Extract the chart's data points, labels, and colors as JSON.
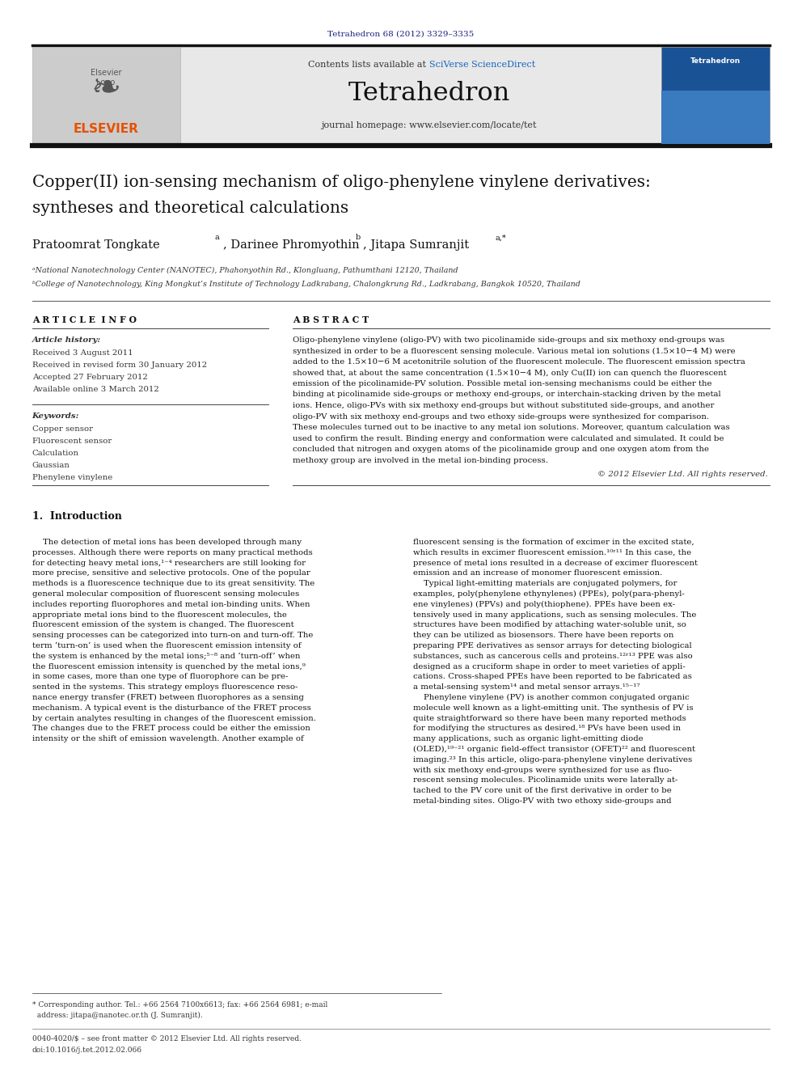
{
  "page_width": 9.92,
  "page_height": 13.23,
  "bg_color": "#ffffff",
  "journal_ref_text": "Tetrahedron 68 (2012) 3329–3335",
  "journal_ref_color": "#1a237e",
  "header_bg": "#e8e8e8",
  "contents_text": "Contents lists available at ",
  "sciverse_text": "SciVerse ScienceDirect",
  "sciverse_color": "#1565c0",
  "journal_name": "Tetrahedron",
  "homepage_text": "journal homepage: www.elsevier.com/locate/tet",
  "elsevier_color": "#e65100",
  "thick_bar_color": "#1a1a2e",
  "title_line1": "Copper(II) ion-sensing mechanism of oligo-phenylene vinylene derivatives:",
  "title_line2": "syntheses and theoretical calculations",
  "authors_text": "Pratoomrat Tongkate",
  "authors_sup_a": "a",
  "authors_part2": ", Darinee Phromyothin",
  "authors_sup_b": "b",
  "authors_part3": ", Jitapa Sumranjit",
  "authors_sup_ab": "a,*",
  "affil_a": "ᵃNational Nanotechnology Center (NANOTEC), Phahonyothin Rd., Klongluang, Pathumthani 12120, Thailand",
  "affil_b": "ᵇCollege of Nanotechnology, King Mongkut’s Institute of Technology Ladkrabang, Chalongkrung Rd., Ladkrabang, Bangkok 10520, Thailand",
  "article_info_title": "A R T I C L E  I N F O",
  "abstract_title": "A B S T R A C T",
  "article_history_label": "Article history:",
  "received_text": "Received 3 August 2011",
  "revised_text": "Received in revised form 30 January 2012",
  "accepted_text": "Accepted 27 February 2012",
  "online_text": "Available online 3 March 2012",
  "keywords_label": "Keywords:",
  "keyword1": "Copper sensor",
  "keyword2": "Fluorescent sensor",
  "keyword3": "Calculation",
  "keyword4": "Gaussian",
  "keyword5": "Phenylene vinylene",
  "abstract_body": "Oligo-phenylene vinylene (oligo-PV) with two picolinamide side-groups and six methoxy end-groups was\nsynthesized in order to be a fluorescent sensing molecule. Various metal ion solutions (1.5×10−4 M) were\nadded to the 1.5×10−6 M acetonitrile solution of the fluorescent molecule. The fluorescent emission spectra\nshowed that, at about the same concentration (1.5×10−4 M), only Cu(II) ion can quench the fluorescent\nemission of the picolinamide-PV solution. Possible metal ion-sensing mechanisms could be either the\nbinding at picolinamide side-groups or methoxy end-groups, or interchain-stacking driven by the metal\nions. Hence, oligo-PVs with six methoxy end-groups but without substituted side-groups, and another\noligo-PV with six methoxy end-groups and two ethoxy side-groups were synthesized for comparison.\nThese molecules turned out to be inactive to any metal ion solutions. Moreover, quantum calculation was\nused to confirm the result. Binding energy and conformation were calculated and simulated. It could be\nconcluded that nitrogen and oxygen atoms of the picolinamide group and one oxygen atom from the\nmethoxy group are involved in the metal ion-binding process.",
  "copyright_text": "© 2012 Elsevier Ltd. All rights reserved.",
  "intro_heading": "1.  Introduction",
  "intro_col1_lines": [
    "    The detection of metal ions has been developed through many",
    "processes. Although there were reports on many practical methods",
    "for detecting heavy metal ions,¹⁻⁴ researchers are still looking for",
    "more precise, sensitive and selective protocols. One of the popular",
    "methods is a fluorescence technique due to its great sensitivity. The",
    "general molecular composition of fluorescent sensing molecules",
    "includes reporting fluorophores and metal ion-binding units. When",
    "appropriate metal ions bind to the fluorescent molecules, the",
    "fluorescent emission of the system is changed. The fluorescent",
    "sensing processes can be categorized into turn-on and turn-off. The",
    "term ‘turn-on’ is used when the fluorescent emission intensity of",
    "the system is enhanced by the metal ions;⁵⁻⁸ and ‘turn-off’ when",
    "the fluorescent emission intensity is quenched by the metal ions,⁹",
    "in some cases, more than one type of fluorophore can be pre-",
    "sented in the systems. This strategy employs fluorescence reso-",
    "nance energy transfer (FRET) between fluorophores as a sensing",
    "mechanism. A typical event is the disturbance of the FRET process",
    "by certain analytes resulting in changes of the fluorescent emission.",
    "The changes due to the FRET process could be either the emission",
    "intensity or the shift of emission wavelength. Another example of"
  ],
  "intro_col2_lines": [
    "fluorescent sensing is the formation of excimer in the excited state,",
    "which results in excimer fluorescent emission.¹⁰ʳ¹¹ In this case, the",
    "presence of metal ions resulted in a decrease of excimer fluorescent",
    "emission and an increase of monomer fluorescent emission.",
    "    Typical light-emitting materials are conjugated polymers, for",
    "examples, poly(phenylene ethynylenes) (PPEs), poly(para-phenyl-",
    "ene vinylenes) (PPVs) and poly(thiophene). PPEs have been ex-",
    "tensively used in many applications, such as sensing molecules. The",
    "structures have been modified by attaching water-soluble unit, so",
    "they can be utilized as biosensors. There have been reports on",
    "preparing PPE derivatives as sensor arrays for detecting biological",
    "substances, such as cancerous cells and proteins.¹²ʳ¹³ PPE was also",
    "designed as a cruciform shape in order to meet varieties of appli-",
    "cations. Cross-shaped PPEs have been reported to be fabricated as",
    "a metal-sensing system¹⁴ and metal sensor arrays.¹⁵⁻¹⁷",
    "    Phenylene vinylene (PV) is another common conjugated organic",
    "molecule well known as a light-emitting unit. The synthesis of PV is",
    "quite straightforward so there have been many reported methods",
    "for modifying the structures as desired.¹⁸ PVs have been used in",
    "many applications, such as organic light-emitting diode",
    "(OLED),¹⁹⁻²¹ organic field-effect transistor (OFET)²² and fluorescent",
    "imaging.²³ In this article, oligo-para-phenylene vinylene derivatives",
    "with six methoxy end-groups were synthesized for use as fluo-",
    "rescent sensing molecules. Picolinamide units were laterally at-",
    "tached to the PV core unit of the first derivative in order to be",
    "metal-binding sites. Oligo-PV with two ethoxy side-groups and"
  ],
  "footnote_text": "* Corresponding author. Tel.: +66 2564 7100x6613; fax: +66 2564 6981; e-mail\n  address: jitapa@nanotec.or.th (J. Sumranjit).",
  "footer_line1": "0040-4020/$ – see front matter © 2012 Elsevier Ltd. All rights reserved.",
  "footer_line2": "doi:10.1016/j.tet.2012.02.066",
  "tetrahedron_blue": "#1a237e",
  "elsevier_orange": "#e65100"
}
